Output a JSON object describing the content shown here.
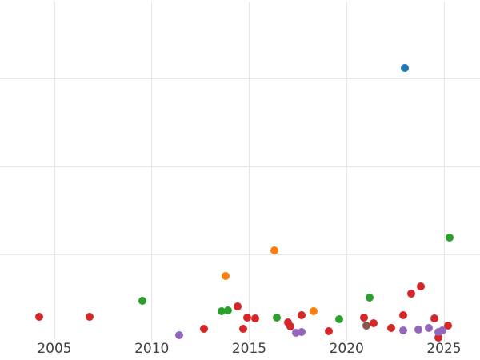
{
  "chart_data": {
    "type": "scatter",
    "title": "",
    "xlabel": "",
    "ylabel": "",
    "x_ticks": [
      2005,
      2010,
      2015,
      2020,
      2025
    ],
    "x_range": [
      2002.2,
      2026.8
    ],
    "y_range": [
      -0.2,
      3.9
    ],
    "y_gridlines": [
      1,
      2,
      3
    ],
    "y_tick_labels_visible": false,
    "grid": true,
    "legend_position": "none",
    "grid_color": "#e6e6e6",
    "tick_label_color": "#404040",
    "background_color": "#ffffff",
    "series": [
      {
        "name": "brown",
        "color": "#8c564b",
        "points": [
          [
            2021.0,
            0.2
          ]
        ]
      },
      {
        "name": "blue",
        "color": "#1f77b4",
        "points": [
          [
            2023.0,
            3.12
          ]
        ]
      },
      {
        "name": "orange",
        "color": "#ff7f0e",
        "points": [
          [
            2013.8,
            0.76
          ],
          [
            2016.3,
            1.05
          ],
          [
            2018.3,
            0.36
          ]
        ]
      },
      {
        "name": "green",
        "color": "#2ca02c",
        "points": [
          [
            2009.5,
            0.48
          ],
          [
            2013.6,
            0.36
          ],
          [
            2013.9,
            0.37
          ],
          [
            2016.4,
            0.29
          ],
          [
            2019.6,
            0.27
          ],
          [
            2021.2,
            0.51
          ],
          [
            2025.3,
            1.2
          ]
        ]
      },
      {
        "name": "red",
        "color": "#d62728",
        "points": [
          [
            2004.2,
            0.3
          ],
          [
            2006.8,
            0.3
          ],
          [
            2012.7,
            0.16
          ],
          [
            2014.4,
            0.41
          ],
          [
            2014.7,
            0.16
          ],
          [
            2014.9,
            0.29
          ],
          [
            2015.3,
            0.28
          ],
          [
            2017.0,
            0.23
          ],
          [
            2017.1,
            0.19
          ],
          [
            2017.7,
            0.31
          ],
          [
            2019.1,
            0.13
          ],
          [
            2020.9,
            0.29
          ],
          [
            2021.4,
            0.22
          ],
          [
            2022.3,
            0.17
          ],
          [
            2022.9,
            0.31
          ],
          [
            2023.3,
            0.56
          ],
          [
            2023.8,
            0.64
          ],
          [
            2024.5,
            0.28
          ],
          [
            2024.7,
            0.06
          ],
          [
            2025.2,
            0.2
          ]
        ]
      },
      {
        "name": "purple",
        "color": "#9467bd",
        "points": [
          [
            2011.4,
            0.09
          ],
          [
            2017.4,
            0.11
          ],
          [
            2017.7,
            0.12
          ],
          [
            2022.9,
            0.14
          ],
          [
            2023.7,
            0.15
          ],
          [
            2024.2,
            0.17
          ],
          [
            2024.7,
            0.12
          ],
          [
            2024.9,
            0.14
          ]
        ]
      }
    ]
  }
}
